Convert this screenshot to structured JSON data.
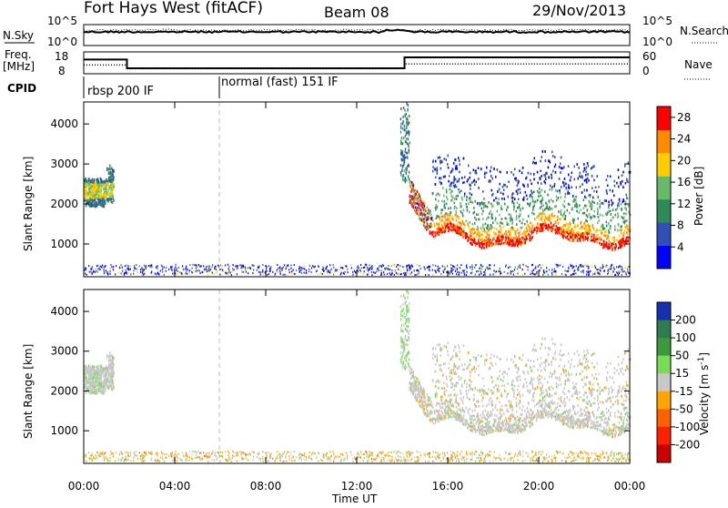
{
  "header": {
    "station": "Fort Hays West (fitACF)",
    "beam": "Beam 08",
    "date": "29/Nov/2013"
  },
  "noise_panel": {
    "left_label": "N.Sky",
    "right_label": "N.Search",
    "left_ticks": [
      "10^5",
      "10^0"
    ],
    "right_ticks": [
      "10^5",
      "10^0"
    ]
  },
  "freq_panel": {
    "left_label_1": "Freq.",
    "left_label_2": "[MHz]",
    "right_label": "Nave",
    "left_ticks": [
      "18",
      "8"
    ],
    "right_ticks": [
      "60",
      "0"
    ],
    "freq_steps_hours": [
      0,
      1.9,
      14.1,
      24
    ],
    "freq_levels_mhz": [
      14.5,
      10.5,
      15.5
    ],
    "nave_steps_hours": [
      0,
      1.9,
      14.1,
      24
    ],
    "nave_levels": [
      24,
      14,
      27
    ]
  },
  "cpid": {
    "label": "CPID",
    "modes": [
      {
        "name": "rbsp 200 IF",
        "start_hour": 0
      },
      {
        "name": "normal (fast) 151 IF",
        "start_hour": 6
      }
    ]
  },
  "chart_data": [
    {
      "type": "heatmap",
      "name": "power",
      "ylabel": "Slant Range [km]",
      "xlabel": "Time UT",
      "x_ticks": [
        "00:00",
        "04:00",
        "08:00",
        "12:00",
        "16:00",
        "20:00",
        "00:00"
      ],
      "y_ticks": [
        1000,
        2000,
        3000,
        4000
      ],
      "xlim_hours": [
        0,
        24
      ],
      "ylim_km": [
        180,
        4550
      ],
      "colorbar": {
        "label": "Power [dB]",
        "ticks": [
          4,
          8,
          12,
          16,
          20,
          24,
          28
        ],
        "range": [
          0,
          30
        ],
        "colors": [
          "#0000ff",
          "#3050b8",
          "#2e8b57",
          "#66bb6a",
          "#ffcc00",
          "#ff8c00",
          "#ff0000"
        ]
      }
    },
    {
      "type": "heatmap",
      "name": "velocity",
      "ylabel": "Slant Range [km]",
      "xlabel": "Time UT",
      "x_ticks": [
        "00:00",
        "04:00",
        "08:00",
        "12:00",
        "16:00",
        "20:00",
        "00:00"
      ],
      "y_ticks": [
        1000,
        2000,
        3000,
        4000
      ],
      "xlim_hours": [
        0,
        24
      ],
      "ylim_km": [
        180,
        4550
      ],
      "colorbar": {
        "label": "Velocity [m s^-1]",
        "ticks": [
          200,
          100,
          50,
          15,
          -15,
          -50,
          -100,
          -200
        ],
        "colors": [
          "#1530b0",
          "#2e7d4f",
          "#3c9a3c",
          "#77dd55",
          "#c8c8c8",
          "#ffa500",
          "#ff6000",
          "#ff2000",
          "#cc0000"
        ]
      }
    }
  ],
  "x_axis_title": "Time UT",
  "mode_change_hour": 6,
  "colors": {
    "grey_scatter": "#c0c0c0",
    "dashed_marker": "#bbbbbb"
  }
}
